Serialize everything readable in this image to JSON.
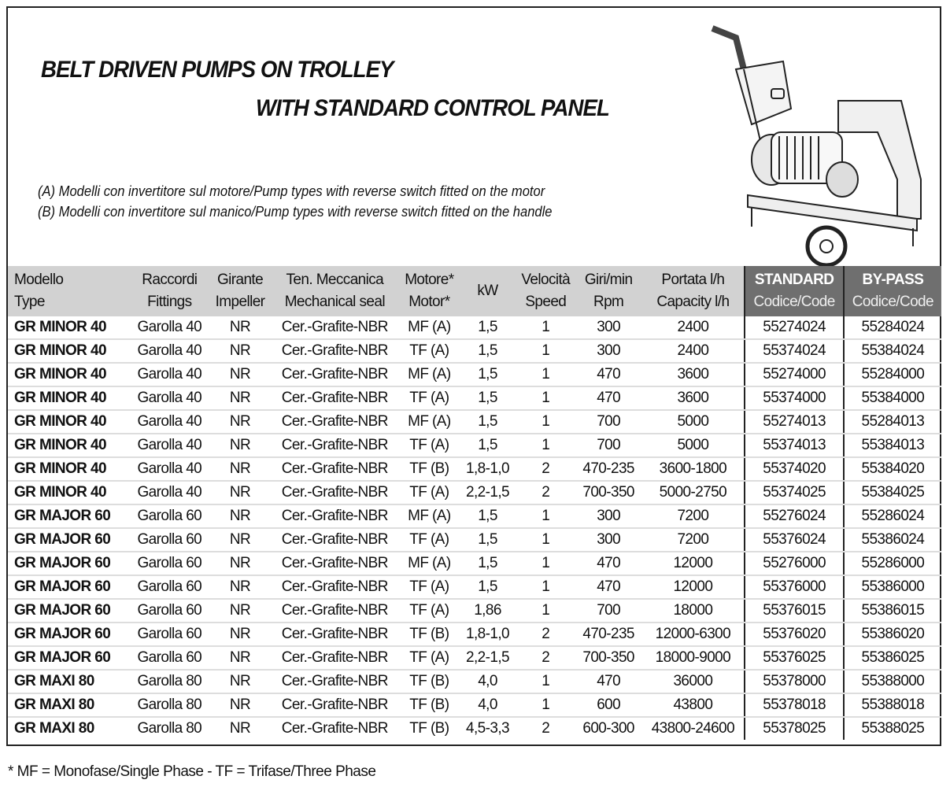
{
  "title_line1": "BELT DRIVEN PUMPS ON TROLLEY",
  "title_line2": "WITH STANDARD CONTROL PANEL",
  "note_a": "(A) Modelli con invertitore sul motore/Pump types with reverse switch fitted on the motor",
  "note_b": "(B) Modelli con invertitore sul manico/Pump types with reverse switch fitted on the handle",
  "headers": [
    [
      "Modello",
      "Type"
    ],
    [
      "Raccordi",
      "Fittings"
    ],
    [
      "Girante",
      "Impeller"
    ],
    [
      "Ten. Meccanica",
      "Mechanical seal"
    ],
    [
      "Motore*",
      "Motor*"
    ],
    [
      "kW",
      ""
    ],
    [
      "Velocità",
      "Speed"
    ],
    [
      "Giri/min",
      "Rpm"
    ],
    [
      "Portata l/h",
      "Capacity l/h"
    ],
    [
      "STANDARD",
      "Codice/Code"
    ],
    [
      "BY-PASS",
      "Codice/Code"
    ]
  ],
  "rows": [
    [
      "GR MINOR 40",
      "Garolla 40",
      "NR",
      "Cer.-Grafite-NBR",
      "MF (A)",
      "1,5",
      "1",
      "300",
      "2400",
      "55274024",
      "55284024"
    ],
    [
      "GR MINOR 40",
      "Garolla 40",
      "NR",
      "Cer.-Grafite-NBR",
      "TF (A)",
      "1,5",
      "1",
      "300",
      "2400",
      "55374024",
      "55384024"
    ],
    [
      "GR MINOR 40",
      "Garolla 40",
      "NR",
      "Cer.-Grafite-NBR",
      "MF (A)",
      "1,5",
      "1",
      "470",
      "3600",
      "55274000",
      "55284000"
    ],
    [
      "GR MINOR 40",
      "Garolla 40",
      "NR",
      "Cer.-Grafite-NBR",
      "TF (A)",
      "1,5",
      "1",
      "470",
      "3600",
      "55374000",
      "55384000"
    ],
    [
      "GR MINOR 40",
      "Garolla 40",
      "NR",
      "Cer.-Grafite-NBR",
      "MF (A)",
      "1,5",
      "1",
      "700",
      "5000",
      "55274013",
      "55284013"
    ],
    [
      "GR MINOR 40",
      "Garolla 40",
      "NR",
      "Cer.-Grafite-NBR",
      "TF (A)",
      "1,5",
      "1",
      "700",
      "5000",
      "55374013",
      "55384013"
    ],
    [
      "GR MINOR 40",
      "Garolla 40",
      "NR",
      "Cer.-Grafite-NBR",
      "TF (B)",
      "1,8-1,0",
      "2",
      "470-235",
      "3600-1800",
      "55374020",
      "55384020"
    ],
    [
      "GR MINOR 40",
      "Garolla 40",
      "NR",
      "Cer.-Grafite-NBR",
      "TF (A)",
      "2,2-1,5",
      "2",
      "700-350",
      "5000-2750",
      "55374025",
      "55384025"
    ],
    [
      "GR MAJOR 60",
      "Garolla 60",
      "NR",
      "Cer.-Grafite-NBR",
      "MF (A)",
      "1,5",
      "1",
      "300",
      "7200",
      "55276024",
      "55286024"
    ],
    [
      "GR MAJOR 60",
      "Garolla 60",
      "NR",
      "Cer.-Grafite-NBR",
      "TF (A)",
      "1,5",
      "1",
      "300",
      "7200",
      "55376024",
      "55386024"
    ],
    [
      "GR MAJOR 60",
      "Garolla 60",
      "NR",
      "Cer.-Grafite-NBR",
      "MF (A)",
      "1,5",
      "1",
      "470",
      "12000",
      "55276000",
      "55286000"
    ],
    [
      "GR MAJOR 60",
      "Garolla 60",
      "NR",
      "Cer.-Grafite-NBR",
      "TF (A)",
      "1,5",
      "1",
      "470",
      "12000",
      "55376000",
      "55386000"
    ],
    [
      "GR MAJOR 60",
      "Garolla 60",
      "NR",
      "Cer.-Grafite-NBR",
      "TF (A)",
      "1,86",
      "1",
      "700",
      "18000",
      "55376015",
      "55386015"
    ],
    [
      "GR MAJOR 60",
      "Garolla 60",
      "NR",
      "Cer.-Grafite-NBR",
      "TF (B)",
      "1,8-1,0",
      "2",
      "470-235",
      "12000-6300",
      "55376020",
      "55386020"
    ],
    [
      "GR MAJOR 60",
      "Garolla 60",
      "NR",
      "Cer.-Grafite-NBR",
      "TF (A)",
      "2,2-1,5",
      "2",
      "700-350",
      "18000-9000",
      "55376025",
      "55386025"
    ],
    [
      "GR MAXI 80",
      "Garolla 80",
      "NR",
      "Cer.-Grafite-NBR",
      "TF (B)",
      "4,0",
      "1",
      "470",
      "36000",
      "55378000",
      "55388000"
    ],
    [
      "GR MAXI 80",
      "Garolla 80",
      "NR",
      "Cer.-Grafite-NBR",
      "TF (B)",
      "4,0",
      "1",
      "600",
      "43800",
      "55378018",
      "55388018"
    ],
    [
      "GR MAXI 80",
      "Garolla 80",
      "NR",
      "Cer.-Grafite-NBR",
      "TF (B)",
      "4,5-3,3",
      "2",
      "600-300",
      "43800-24600",
      "55378025",
      "55388025"
    ]
  ],
  "footnote": "* MF = Monofase/Single Phase - TF = Trifase/Three Phase",
  "colors": {
    "header_bg": "#d2d2d2",
    "code_header_bg": "#6f6f6f"
  }
}
